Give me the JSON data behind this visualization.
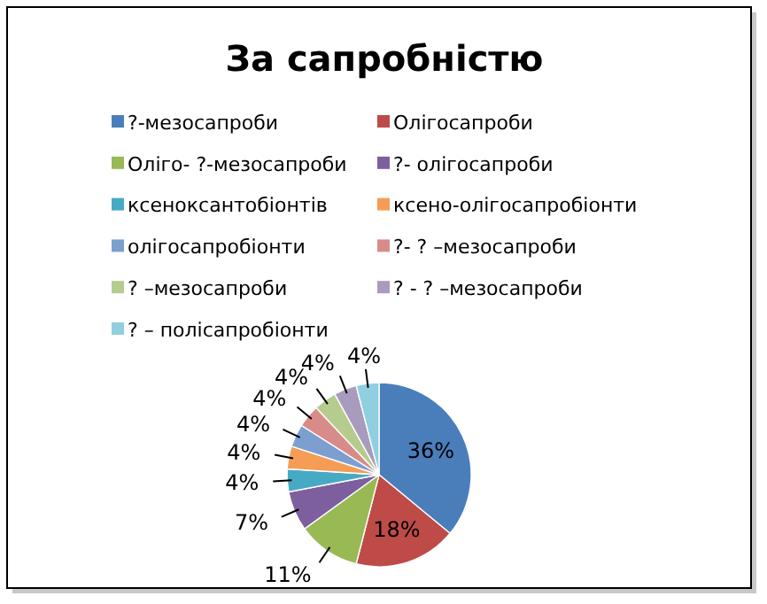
{
  "chart_data": {
    "type": "pie",
    "title": "За сапробністю",
    "categories": [
      "?-мезосапроби",
      "Олігосапроби",
      "Оліго- ?-мезосапроби",
      "?- олігосапроби",
      "ксеноксантобіонтів",
      "ксено-олігосапробіонти",
      "олігосапробіонти",
      "?- ? –мезосапроби",
      "? –мезосапроби",
      "? - ? –мезосапроби",
      "? – полісапробіонти"
    ],
    "values": [
      36,
      18,
      11,
      7,
      4,
      4,
      4,
      4,
      4,
      4,
      4
    ],
    "colors": [
      "#4a7ebb",
      "#be4b48",
      "#98b954",
      "#7d5fa0",
      "#46aac5",
      "#f59d56",
      "#7c9fd0",
      "#d88c8a",
      "#b5cc8e",
      "#a99bbd",
      "#8fcfe0"
    ],
    "value_labels": [
      "36%",
      "18%",
      "11%",
      "7%",
      "4%",
      "4%",
      "4%",
      "4%",
      "4%",
      "4%",
      "4%"
    ],
    "legend": "top"
  }
}
